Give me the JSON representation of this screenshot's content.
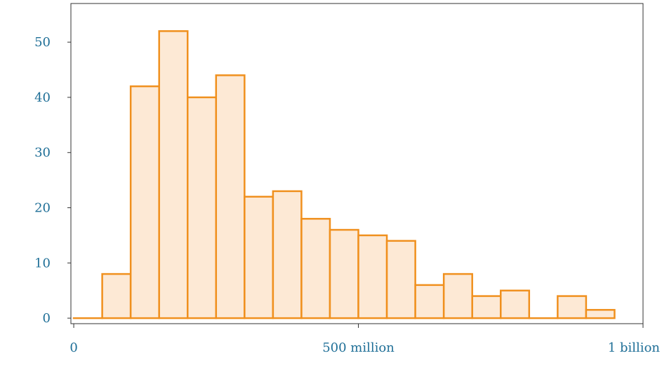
{
  "chart_data": {
    "type": "bar",
    "title": "",
    "xlabel": "",
    "ylabel": "",
    "bins": [
      {
        "x0": 0,
        "x1": 50000000,
        "value": 0
      },
      {
        "x0": 50000000,
        "x1": 100000000,
        "value": 8
      },
      {
        "x0": 100000000,
        "x1": 150000000,
        "value": 42
      },
      {
        "x0": 150000000,
        "x1": 200000000,
        "value": 52
      },
      {
        "x0": 200000000,
        "x1": 250000000,
        "value": 40
      },
      {
        "x0": 250000000,
        "x1": 300000000,
        "value": 44
      },
      {
        "x0": 300000000,
        "x1": 350000000,
        "value": 22
      },
      {
        "x0": 350000000,
        "x1": 400000000,
        "value": 23
      },
      {
        "x0": 400000000,
        "x1": 450000000,
        "value": 18
      },
      {
        "x0": 450000000,
        "x1": 500000000,
        "value": 16
      },
      {
        "x0": 500000000,
        "x1": 550000000,
        "value": 15
      },
      {
        "x0": 550000000,
        "x1": 600000000,
        "value": 14
      },
      {
        "x0": 600000000,
        "x1": 650000000,
        "value": 6
      },
      {
        "x0": 650000000,
        "x1": 700000000,
        "value": 8
      },
      {
        "x0": 700000000,
        "x1": 750000000,
        "value": 4
      },
      {
        "x0": 750000000,
        "x1": 800000000,
        "value": 5
      },
      {
        "x0": 800000000,
        "x1": 850000000,
        "value": 0
      },
      {
        "x0": 850000000,
        "x1": 900000000,
        "value": 4
      },
      {
        "x0": 900000000,
        "x1": 950000000,
        "value": 1.5
      }
    ],
    "xlim": [
      -5000000,
      1000000000
    ],
    "ylim": [
      -1,
      57
    ],
    "x_ticks": [
      {
        "value": 0,
        "label": "0"
      },
      {
        "value": 500000000,
        "label": "500 million"
      },
      {
        "value": 1000000000,
        "label": "1 billion"
      }
    ],
    "y_ticks": [
      {
        "value": 0,
        "label": "0"
      },
      {
        "value": 10,
        "label": "10"
      },
      {
        "value": 20,
        "label": "20"
      },
      {
        "value": 30,
        "label": "30"
      },
      {
        "value": 40,
        "label": "40"
      },
      {
        "value": 50,
        "label": "50"
      }
    ],
    "grid": false,
    "legend": "none",
    "colors": {
      "bar_fill": "#fde9d5",
      "bar_stroke": "#f0901e",
      "tick_label": "#1f6f97",
      "axis": "#333333"
    }
  }
}
